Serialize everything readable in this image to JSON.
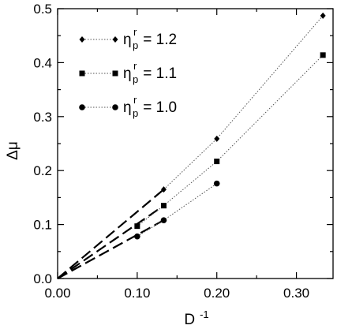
{
  "chart_data": {
    "type": "line",
    "xlabel": "D",
    "xlabel_superscript": "-1",
    "ylabel": "Δμ",
    "xlim": [
      0.0,
      0.35
    ],
    "ylim": [
      0.0,
      0.5
    ],
    "xticks": [
      0.0,
      0.1,
      0.2,
      0.3
    ],
    "xtick_labels": [
      "0.00",
      "0.10",
      "0.20",
      "0.30"
    ],
    "yticks": [
      0.0,
      0.1,
      0.2,
      0.3,
      0.4,
      0.5
    ],
    "ytick_labels": [
      "0.0",
      "0.1",
      "0.2",
      "0.3",
      "0.4",
      "0.5"
    ],
    "grid": false,
    "legend_position": "top-left",
    "series": [
      {
        "name": "η_p^r = 1.2",
        "label_main": "η",
        "label_sup": "r",
        "label_sub": "p",
        "label_value": " = 1.2",
        "marker": "diamond",
        "x": [
          0.1333,
          0.2,
          0.3333
        ],
        "y": [
          0.165,
          0.259,
          0.487
        ],
        "fit": {
          "x": [
            0.0,
            0.1333
          ],
          "y": [
            0.0,
            0.165
          ]
        }
      },
      {
        "name": "η_p^r = 1.1",
        "label_main": "η",
        "label_sup": "r",
        "label_sub": "p",
        "label_value": " = 1.1",
        "marker": "square",
        "x": [
          0.1,
          0.1333,
          0.2,
          0.3333
        ],
        "y": [
          0.097,
          0.135,
          0.217,
          0.414
        ],
        "fit": {
          "x": [
            0.0,
            0.1333
          ],
          "y": [
            0.0,
            0.135
          ]
        }
      },
      {
        "name": "η_p^r = 1.0",
        "label_main": "η",
        "label_sup": "r",
        "label_sub": "p",
        "label_value": " = 1.0",
        "marker": "circle",
        "x": [
          0.1,
          0.1333,
          0.2
        ],
        "y": [
          0.078,
          0.108,
          0.176
        ],
        "fit": {
          "x": [
            0.0,
            0.1333
          ],
          "y": [
            0.0,
            0.108
          ]
        }
      }
    ]
  }
}
